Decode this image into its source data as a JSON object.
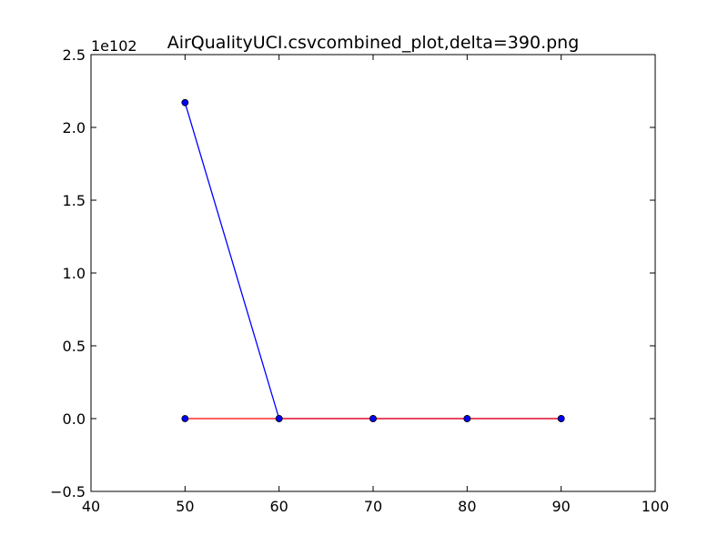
{
  "chart_data": {
    "type": "line",
    "title": "AirQualityUCI.csvcombined_plot,delta=390.png",
    "xlabel": "",
    "ylabel": "",
    "y_offset_text": "1e102",
    "xlim": [
      40,
      100
    ],
    "ylim": [
      -0.5,
      2.5
    ],
    "x_ticks": [
      40,
      50,
      60,
      70,
      80,
      90,
      100
    ],
    "x_tick_labels": [
      "40",
      "50",
      "60",
      "70",
      "80",
      "90",
      "100"
    ],
    "y_ticks": [
      -0.5,
      0.0,
      0.5,
      1.0,
      1.5,
      2.0,
      2.5
    ],
    "y_tick_labels": [
      "−0.5",
      "0.0",
      "0.5",
      "1.0",
      "1.5",
      "2.0",
      "2.5"
    ],
    "grid": false,
    "legend": "none",
    "series": [
      {
        "color": "#0000ff",
        "marker_color": "#0000ff",
        "x": [
          50,
          60,
          70,
          80,
          90
        ],
        "y": [
          2.17,
          0.0,
          0.0,
          0.0,
          0.0
        ]
      },
      {
        "color": "#ff0000",
        "marker_color": "#0000ff",
        "x": [
          50,
          60,
          70,
          80,
          90
        ],
        "y": [
          0.0,
          0.0,
          0.0,
          0.0,
          0.0
        ]
      }
    ]
  }
}
